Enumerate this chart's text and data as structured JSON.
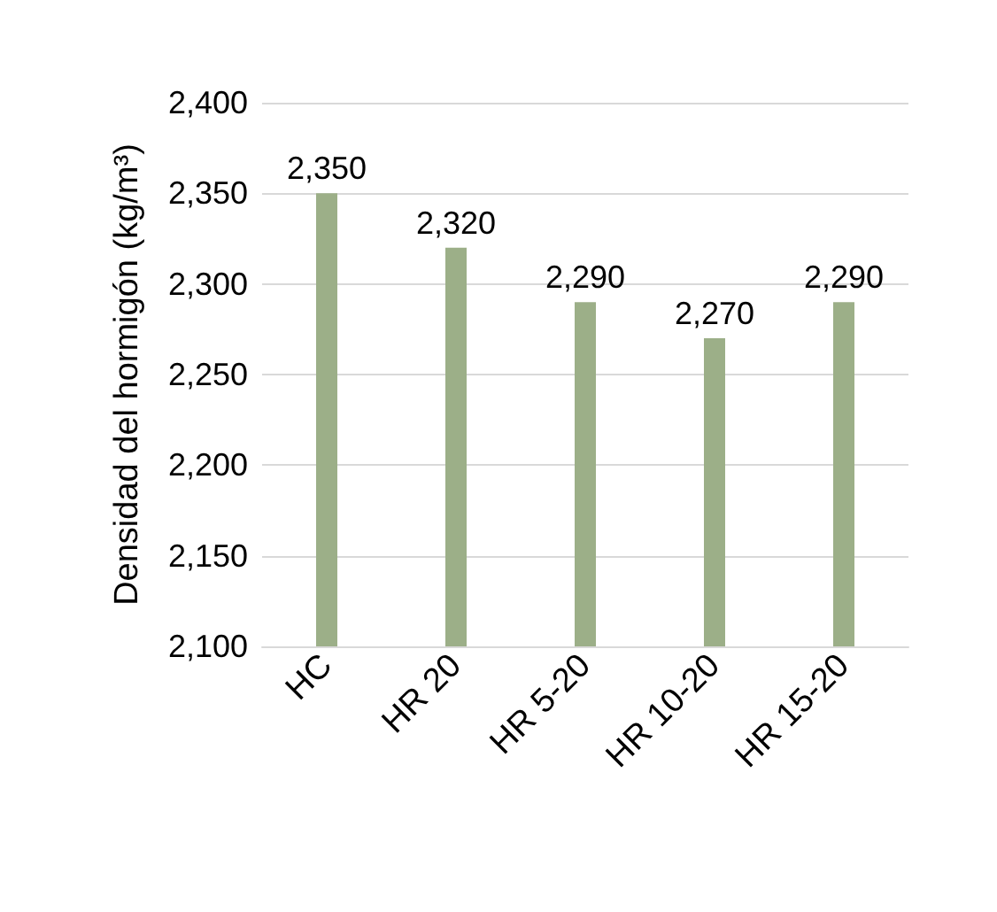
{
  "chart_data": {
    "type": "bar",
    "ylabel": "Densidad del hormigón (kg/m³)",
    "categories": [
      "HC",
      "HR 20",
      "HR 5-20",
      "HR 10-20",
      "HR 15-20"
    ],
    "values": [
      2350,
      2320,
      2290,
      2270,
      2290
    ],
    "value_labels": [
      "2,350",
      "2,320",
      "2,290",
      "2,270",
      "2,290"
    ],
    "color": "#9caf88",
    "ylim": [
      2100,
      2400
    ],
    "yticks": [
      {
        "value": 2100,
        "label": "2,100"
      },
      {
        "value": 2150,
        "label": "2,150"
      },
      {
        "value": 2200,
        "label": "2,200"
      },
      {
        "value": 2250,
        "label": "2,250"
      },
      {
        "value": 2300,
        "label": "2,300"
      },
      {
        "value": 2350,
        "label": "2,350"
      },
      {
        "value": 2400,
        "label": "2,400"
      }
    ],
    "grid": "y"
  }
}
